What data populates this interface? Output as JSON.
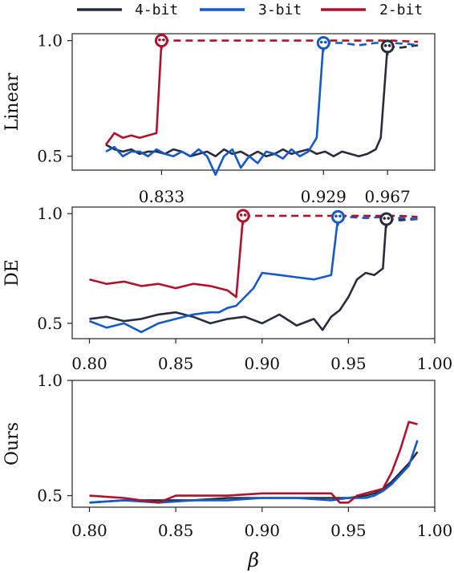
{
  "legend": {
    "entries": [
      {
        "label": "4-bit",
        "color": "#2b2b3f"
      },
      {
        "label": "3-bit",
        "color": "#1459c9"
      },
      {
        "label": "2-bit",
        "color": "#b0122d"
      }
    ]
  },
  "xlabel": "β",
  "colors": {
    "4-bit": "#2b2b3f",
    "3-bit": "#1459c9",
    "2-bit": "#b0122d"
  },
  "chart_data": [
    {
      "type": "line",
      "panel": "Linear",
      "ylabel": "Linear",
      "xlim": [
        0.78,
        0.995
      ],
      "ylim": [
        0.44,
        1.03
      ],
      "yticks": [
        0.5,
        1.0
      ],
      "ytick_labels": [
        "0.5",
        "1.0"
      ],
      "xticks": [
        0.833,
        0.929,
        0.967
      ],
      "xtick_labels": [
        "0.833",
        "0.929",
        "0.967"
      ],
      "markers": [
        {
          "series": "2-bit",
          "x": 0.833,
          "y": 1.0
        },
        {
          "series": "3-bit",
          "x": 0.929,
          "y": 0.99
        },
        {
          "series": "4-bit",
          "x": 0.967,
          "y": 0.975
        }
      ],
      "series": [
        {
          "name": "4-bit",
          "x": [
            0.8,
            0.805,
            0.81,
            0.815,
            0.82,
            0.825,
            0.83,
            0.835,
            0.84,
            0.845,
            0.85,
            0.855,
            0.86,
            0.865,
            0.87,
            0.875,
            0.88,
            0.885,
            0.89,
            0.895,
            0.9,
            0.905,
            0.91,
            0.915,
            0.92,
            0.925,
            0.93,
            0.935,
            0.94,
            0.945,
            0.95,
            0.955,
            0.96,
            0.963,
            0.967,
            0.975,
            0.985
          ],
          "y": [
            0.55,
            0.53,
            0.52,
            0.53,
            0.51,
            0.52,
            0.52,
            0.51,
            0.53,
            0.52,
            0.5,
            0.51,
            0.52,
            0.5,
            0.53,
            0.51,
            0.52,
            0.5,
            0.52,
            0.5,
            0.51,
            0.53,
            0.51,
            0.52,
            0.53,
            0.51,
            0.52,
            0.5,
            0.52,
            0.51,
            0.5,
            0.51,
            0.53,
            0.58,
            0.975,
            0.97,
            0.98
          ],
          "tail_dashed_from": 0.967
        },
        {
          "name": "3-bit",
          "x": [
            0.8,
            0.805,
            0.81,
            0.815,
            0.82,
            0.825,
            0.83,
            0.835,
            0.84,
            0.845,
            0.85,
            0.855,
            0.86,
            0.865,
            0.87,
            0.875,
            0.88,
            0.885,
            0.89,
            0.895,
            0.9,
            0.905,
            0.91,
            0.915,
            0.92,
            0.925,
            0.929,
            0.94,
            0.95,
            0.96,
            0.97,
            0.98,
            0.985
          ],
          "y": [
            0.52,
            0.54,
            0.5,
            0.52,
            0.52,
            0.5,
            0.53,
            0.51,
            0.5,
            0.52,
            0.5,
            0.53,
            0.5,
            0.42,
            0.5,
            0.53,
            0.45,
            0.5,
            0.47,
            0.52,
            0.51,
            0.49,
            0.53,
            0.5,
            0.52,
            0.58,
            0.99,
            0.99,
            0.98,
            0.99,
            0.99,
            0.985,
            0.98
          ],
          "tail_dashed_from": 0.929
        },
        {
          "name": "2-bit",
          "x": [
            0.8,
            0.805,
            0.81,
            0.815,
            0.82,
            0.825,
            0.83,
            0.833,
            0.85,
            0.87,
            0.89,
            0.91,
            0.93,
            0.95,
            0.97,
            0.985
          ],
          "y": [
            0.55,
            0.6,
            0.58,
            0.59,
            0.58,
            0.59,
            0.6,
            1.0,
            1.0,
            1.0,
            1.0,
            1.0,
            1.0,
            1.0,
            1.0,
            0.995
          ],
          "tail_dashed_from": 0.833
        }
      ]
    },
    {
      "type": "line",
      "panel": "DE",
      "ylabel": "DE",
      "xlim": [
        0.79,
        1.0
      ],
      "ylim": [
        0.43,
        1.03
      ],
      "yticks": [
        0.5,
        1.0
      ],
      "ytick_labels": [
        "0.5",
        "1.0"
      ],
      "xticks": [
        0.8,
        0.85,
        0.9,
        0.95,
        1.0
      ],
      "xtick_labels": [
        "0.80",
        "0.85",
        "0.90",
        "0.95",
        "1.00"
      ],
      "markers": [
        {
          "series": "2-bit",
          "x": 0.889,
          "y": 0.99
        },
        {
          "series": "3-bit",
          "x": 0.944,
          "y": 0.985
        },
        {
          "series": "4-bit",
          "x": 0.972,
          "y": 0.975
        }
      ],
      "series": [
        {
          "name": "4-bit",
          "x": [
            0.8,
            0.81,
            0.82,
            0.83,
            0.84,
            0.85,
            0.86,
            0.87,
            0.88,
            0.89,
            0.9,
            0.91,
            0.92,
            0.93,
            0.935,
            0.94,
            0.945,
            0.95,
            0.955,
            0.96,
            0.965,
            0.97,
            0.972,
            0.98,
            0.99
          ],
          "y": [
            0.52,
            0.53,
            0.51,
            0.52,
            0.54,
            0.55,
            0.53,
            0.5,
            0.52,
            0.53,
            0.5,
            0.54,
            0.49,
            0.52,
            0.47,
            0.53,
            0.56,
            0.62,
            0.7,
            0.73,
            0.72,
            0.75,
            0.975,
            0.97,
            0.975
          ],
          "tail_dashed_from": 0.972
        },
        {
          "name": "3-bit",
          "x": [
            0.8,
            0.81,
            0.82,
            0.83,
            0.84,
            0.85,
            0.86,
            0.87,
            0.875,
            0.88,
            0.885,
            0.89,
            0.895,
            0.9,
            0.91,
            0.92,
            0.93,
            0.94,
            0.944,
            0.95,
            0.96,
            0.97,
            0.98,
            0.99
          ],
          "y": [
            0.51,
            0.48,
            0.5,
            0.46,
            0.5,
            0.52,
            0.54,
            0.55,
            0.55,
            0.57,
            0.58,
            0.62,
            0.66,
            0.73,
            0.72,
            0.71,
            0.7,
            0.72,
            0.985,
            0.985,
            0.98,
            0.985,
            0.98,
            0.975
          ],
          "tail_dashed_from": 0.944
        },
        {
          "name": "2-bit",
          "x": [
            0.8,
            0.81,
            0.82,
            0.83,
            0.84,
            0.85,
            0.86,
            0.87,
            0.88,
            0.885,
            0.889,
            0.9,
            0.92,
            0.94,
            0.96,
            0.98,
            0.99
          ],
          "y": [
            0.7,
            0.68,
            0.69,
            0.67,
            0.68,
            0.66,
            0.68,
            0.67,
            0.65,
            0.62,
            0.99,
            0.99,
            0.99,
            0.99,
            0.99,
            0.99,
            0.985
          ],
          "tail_dashed_from": 0.889
        }
      ]
    },
    {
      "type": "line",
      "panel": "Ours",
      "ylabel": "Ours",
      "xlim": [
        0.79,
        1.0
      ],
      "ylim": [
        0.45,
        1.0
      ],
      "yticks": [
        0.5,
        1.0
      ],
      "ytick_labels": [
        "0.5",
        "1.0"
      ],
      "xticks": [
        0.8,
        0.85,
        0.9,
        0.95,
        1.0
      ],
      "xtick_labels": [
        "0.80",
        "0.85",
        "0.90",
        "0.95",
        "1.00"
      ],
      "xlabel": "β",
      "series": [
        {
          "name": "4-bit",
          "x": [
            0.8,
            0.82,
            0.84,
            0.86,
            0.88,
            0.9,
            0.92,
            0.94,
            0.95,
            0.96,
            0.965,
            0.97,
            0.975,
            0.98,
            0.985,
            0.99
          ],
          "y": [
            0.47,
            0.48,
            0.48,
            0.48,
            0.49,
            0.49,
            0.49,
            0.49,
            0.49,
            0.5,
            0.51,
            0.53,
            0.56,
            0.6,
            0.64,
            0.69
          ]
        },
        {
          "name": "3-bit",
          "x": [
            0.8,
            0.82,
            0.84,
            0.86,
            0.88,
            0.9,
            0.92,
            0.94,
            0.95,
            0.96,
            0.965,
            0.97,
            0.975,
            0.98,
            0.985,
            0.99
          ],
          "y": [
            0.47,
            0.48,
            0.47,
            0.48,
            0.48,
            0.49,
            0.49,
            0.48,
            0.49,
            0.49,
            0.5,
            0.52,
            0.55,
            0.59,
            0.63,
            0.74
          ]
        },
        {
          "name": "2-bit",
          "x": [
            0.8,
            0.82,
            0.84,
            0.85,
            0.86,
            0.88,
            0.9,
            0.92,
            0.94,
            0.945,
            0.95,
            0.955,
            0.96,
            0.97,
            0.975,
            0.98,
            0.985,
            0.99
          ],
          "y": [
            0.5,
            0.49,
            0.47,
            0.5,
            0.5,
            0.5,
            0.51,
            0.51,
            0.51,
            0.47,
            0.47,
            0.5,
            0.51,
            0.53,
            0.6,
            0.7,
            0.82,
            0.81
          ]
        }
      ]
    }
  ]
}
